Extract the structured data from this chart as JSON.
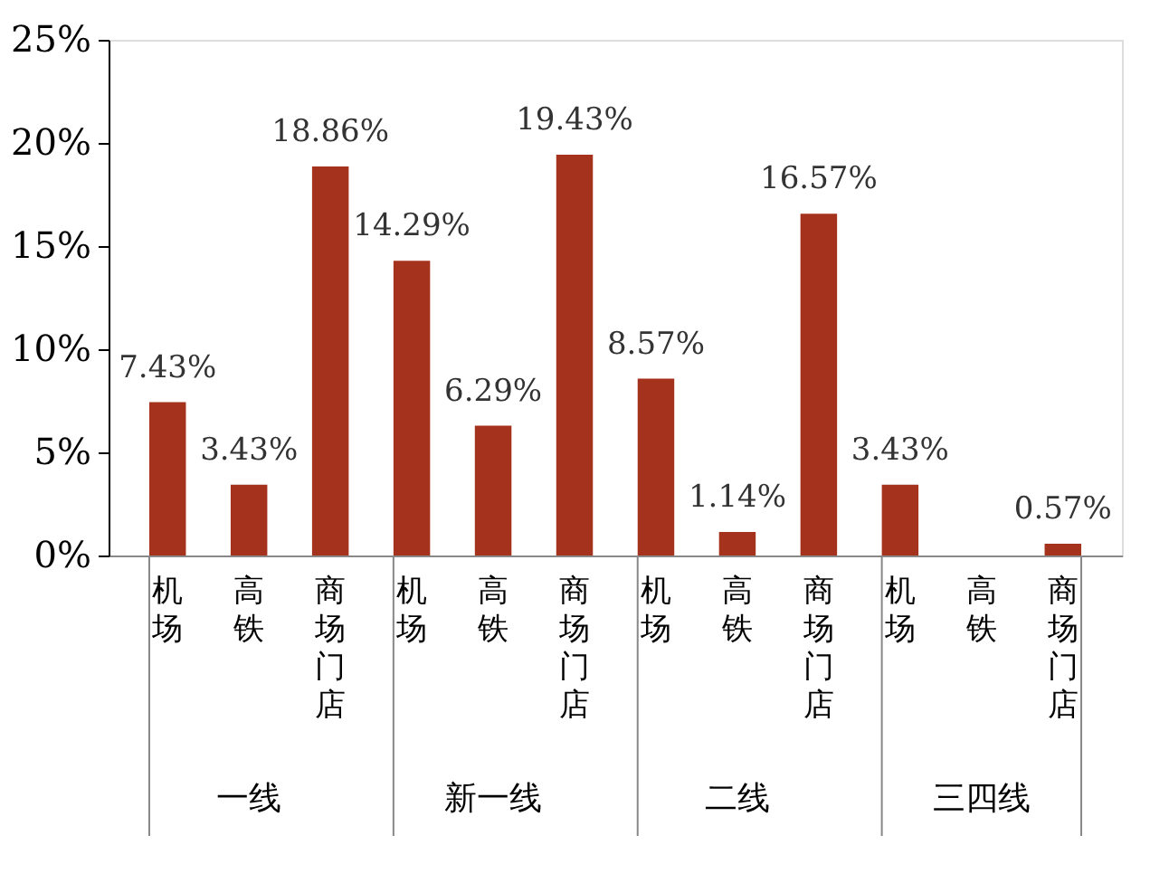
{
  "chart_data": {
    "type": "bar",
    "categories": [
      "机场",
      "高铁",
      "商场门店",
      "机场",
      "高铁",
      "商场门店",
      "机场",
      "高铁",
      "商场门店",
      "机场",
      "高铁",
      "商场门店"
    ],
    "values": [
      7.43,
      3.43,
      18.86,
      14.29,
      6.29,
      19.43,
      8.57,
      1.14,
      16.57,
      3.43,
      null,
      0.57
    ],
    "value_labels": [
      "7.43%",
      "3.43%",
      "18.86%",
      "14.29%",
      "6.29%",
      "19.43%",
      "8.57%",
      "1.14%",
      "16.57%",
      "3.43%",
      null,
      "0.57%"
    ],
    "color": "#a5321c",
    "annotations": [
      "一线",
      "新一线",
      "二线",
      "三四线"
    ],
    "ylim": [
      0,
      25
    ],
    "yticks": [
      {
        "value": 0,
        "label": "0%"
      },
      {
        "value": 5,
        "label": "5%"
      },
      {
        "value": 10,
        "label": "10%"
      },
      {
        "value": 15,
        "label": "15%"
      },
      {
        "value": 20,
        "label": "20%"
      },
      {
        "value": 25,
        "label": "25%"
      }
    ],
    "grid": false
  }
}
